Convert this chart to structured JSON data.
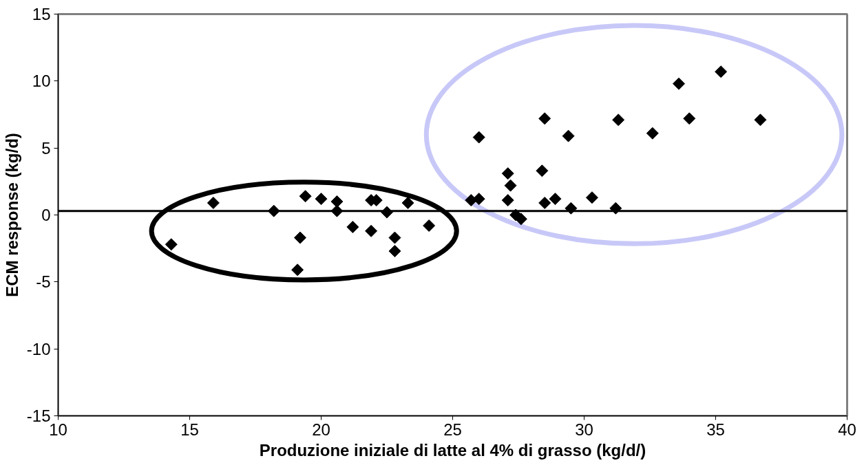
{
  "chart_data": {
    "type": "scatter",
    "xlabel": "Produzione iniziale di latte al 4% di grasso (kg/d/)",
    "ylabel": "ECM response (kg/d)",
    "x": [
      14.3,
      15.9,
      18.2,
      19.1,
      19.2,
      19.4,
      20.0,
      20.6,
      20.6,
      21.2,
      21.9,
      22.1,
      21.9,
      22.5,
      22.8,
      22.8,
      23.3,
      24.1,
      26.0,
      28.5,
      29.4,
      31.3,
      32.6,
      33.6,
      34.0,
      35.2,
      36.7,
      27.1,
      28.4,
      27.2,
      25.7,
      26.0,
      27.1,
      28.5,
      28.9,
      30.3,
      29.5,
      31.2,
      27.4,
      27.6
    ],
    "values": [
      -2.2,
      0.9,
      0.3,
      -4.1,
      -1.7,
      1.4,
      1.2,
      1.0,
      0.3,
      -0.9,
      1.1,
      1.1,
      -1.2,
      0.2,
      -1.7,
      -2.7,
      0.9,
      -0.8,
      5.8,
      7.2,
      5.9,
      7.1,
      6.1,
      9.8,
      7.2,
      10.7,
      7.1,
      3.1,
      3.3,
      2.2,
      1.1,
      1.2,
      1.1,
      0.9,
      1.2,
      1.3,
      0.5,
      0.5,
      0.0,
      -0.3
    ],
    "color": "#000000",
    "marker": "diamond",
    "grid": false,
    "xlim": [
      10,
      40
    ],
    "xticks": [
      10,
      15,
      20,
      25,
      30,
      35,
      40
    ],
    "ylim": [
      -15,
      15
    ],
    "yticks": [
      -15,
      -10,
      -5,
      0,
      5,
      10,
      15
    ],
    "ref_lines": [
      {
        "axis": "y",
        "value": 0.3,
        "color": "#000000"
      }
    ]
  }
}
